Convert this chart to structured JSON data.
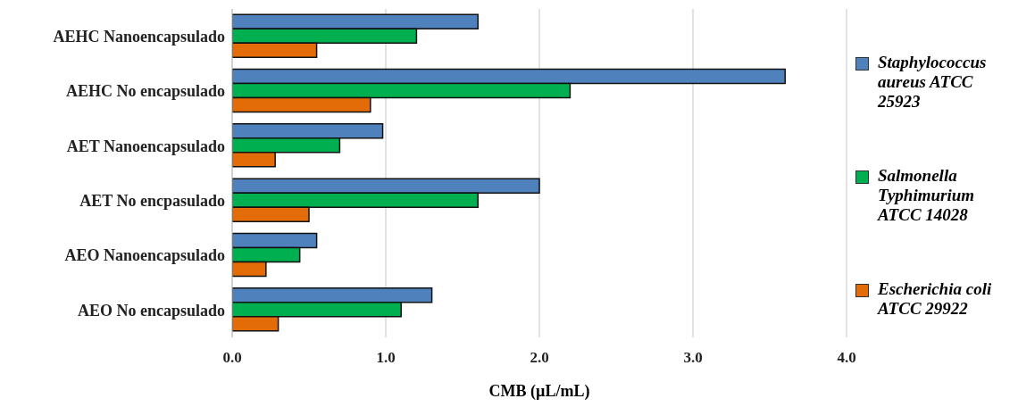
{
  "chart_data": {
    "type": "bar",
    "orientation": "horizontal",
    "xlabel": "CMB (µL/mL)",
    "categories": [
      "AEHC Nanoencapsulado",
      "AEHC No encapsulado",
      "AET Nanoencapsulado",
      "AET No encpasulado",
      "AEO Nanoencapsulado",
      "AEO No encapsulado"
    ],
    "series": [
      {
        "name": "Staphylococcus aureus ATCC 25923",
        "color": "#4f81bd",
        "values": [
          1.6,
          3.6,
          0.98,
          2.0,
          0.55,
          1.3
        ]
      },
      {
        "name": "Salmonella Typhimurium ATCC 14028",
        "color": "#00b050",
        "values": [
          1.2,
          2.2,
          0.7,
          1.6,
          0.44,
          1.1
        ]
      },
      {
        "name": "Escherichia coli ATCC 29922",
        "color": "#e36c09",
        "values": [
          0.55,
          0.9,
          0.28,
          0.5,
          0.22,
          0.3
        ]
      }
    ],
    "xlim": [
      0,
      4
    ],
    "xticks": [
      {
        "value": 0,
        "label": "0.0"
      },
      {
        "value": 1,
        "label": "1.0"
      },
      {
        "value": 2,
        "label": "2.0"
      },
      {
        "value": 3,
        "label": "3.0"
      },
      {
        "value": 4,
        "label": "4.0"
      }
    ],
    "grid": "x",
    "legend": "right"
  }
}
